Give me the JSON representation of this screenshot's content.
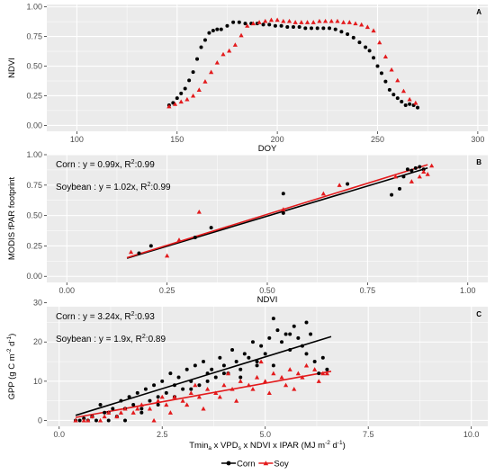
{
  "colors": {
    "corn": "#000000",
    "soy": "#e31a1c",
    "panel_bg": "#ebebeb",
    "grid": "#ffffff",
    "axis_text": "#4d4d4d"
  },
  "legend": {
    "placement": "bottom-center",
    "items": [
      {
        "label": "Corn",
        "marker": "circle",
        "color": "#000000"
      },
      {
        "label": "Soy",
        "marker": "triangle",
        "color": "#e31a1c"
      }
    ]
  },
  "chart_data": [
    {
      "panel": "A",
      "type": "scatter",
      "xlabel": "DOY",
      "ylabel": "NDVI",
      "xlim": [
        85,
        305
      ],
      "ylim": [
        -0.05,
        1.02
      ],
      "xticks": [
        "100",
        "150",
        "200",
        "250",
        "300"
      ],
      "xtick_values": [
        100,
        150,
        200,
        250,
        300
      ],
      "yticks": [
        "0.00",
        "0.25",
        "0.50",
        "0.75",
        "1.00"
      ],
      "ytick_values": [
        0,
        0.25,
        0.5,
        0.75,
        1.0
      ],
      "grid": true,
      "series": [
        {
          "name": "Corn",
          "marker": "circle",
          "color": "#000000",
          "x": [
            146,
            148,
            150,
            152,
            154,
            156,
            158,
            160,
            162,
            164,
            166,
            168,
            170,
            172,
            175,
            178,
            181,
            184,
            187,
            190,
            193,
            196,
            199,
            202,
            205,
            208,
            211,
            214,
            217,
            220,
            223,
            226,
            229,
            232,
            235,
            238,
            241,
            244,
            246,
            248,
            250,
            252,
            254,
            256,
            258,
            260,
            262,
            264,
            266,
            268,
            270
          ],
          "y": [
            0.17,
            0.19,
            0.23,
            0.27,
            0.31,
            0.38,
            0.45,
            0.56,
            0.66,
            0.72,
            0.78,
            0.8,
            0.81,
            0.81,
            0.84,
            0.87,
            0.87,
            0.86,
            0.86,
            0.86,
            0.85,
            0.85,
            0.84,
            0.84,
            0.83,
            0.83,
            0.83,
            0.82,
            0.82,
            0.82,
            0.82,
            0.82,
            0.81,
            0.79,
            0.77,
            0.74,
            0.7,
            0.66,
            0.63,
            0.57,
            0.5,
            0.44,
            0.37,
            0.3,
            0.26,
            0.23,
            0.2,
            0.17,
            0.18,
            0.17,
            0.15
          ]
        },
        {
          "name": "Soy",
          "marker": "triangle",
          "color": "#e31a1c",
          "x": [
            146,
            149,
            152,
            155,
            158,
            161,
            164,
            167,
            170,
            173,
            176,
            179,
            182,
            185,
            188,
            191,
            194,
            197,
            200,
            203,
            206,
            209,
            212,
            215,
            218,
            221,
            224,
            227,
            230,
            233,
            236,
            239,
            242,
            245,
            248,
            251,
            254,
            257,
            260,
            263,
            266,
            269
          ],
          "y": [
            0.16,
            0.18,
            0.2,
            0.22,
            0.25,
            0.3,
            0.37,
            0.45,
            0.53,
            0.6,
            0.63,
            0.68,
            0.76,
            0.84,
            0.86,
            0.87,
            0.88,
            0.89,
            0.89,
            0.88,
            0.88,
            0.87,
            0.87,
            0.87,
            0.87,
            0.88,
            0.88,
            0.88,
            0.88,
            0.87,
            0.87,
            0.86,
            0.85,
            0.83,
            0.8,
            0.7,
            0.58,
            0.47,
            0.38,
            0.29,
            0.22,
            0.19
          ]
        }
      ]
    },
    {
      "panel": "B",
      "type": "scatter",
      "xlabel": "NDVI",
      "ylabel": "MODIS fPAR footprint",
      "xlim": [
        -0.05,
        1.05
      ],
      "ylim": [
        -0.05,
        1.0
      ],
      "xticks": [
        "0.00",
        "0.25",
        "0.50",
        "0.75",
        "1.00"
      ],
      "xtick_values": [
        0,
        0.25,
        0.5,
        0.75,
        1.0
      ],
      "yticks": [
        "0.00",
        "0.25",
        "0.50",
        "0.75",
        "1.00"
      ],
      "ytick_values": [
        0,
        0.25,
        0.5,
        0.75,
        1.0
      ],
      "grid": true,
      "annotations": [
        {
          "crop": "Corn",
          "text": "Corn : y = 0.99x,  R",
          "sup": "2",
          "tail": ":0.99"
        },
        {
          "crop": "Soybean",
          "text": "Soybean : y = 1.02x,  R",
          "sup": "2",
          "tail": ":0.99"
        }
      ],
      "fit_lines": [
        {
          "name": "Corn",
          "slope": 0.99,
          "x_range": [
            0.15,
            0.9
          ]
        },
        {
          "name": "Soybean",
          "slope": 1.02,
          "x_range": [
            0.15,
            0.9
          ]
        }
      ],
      "series": [
        {
          "name": "Corn",
          "marker": "circle",
          "color": "#000000",
          "x": [
            0.18,
            0.21,
            0.32,
            0.36,
            0.54,
            0.54,
            0.7,
            0.81,
            0.83,
            0.84,
            0.85,
            0.86,
            0.87,
            0.88,
            0.89
          ],
          "y": [
            0.19,
            0.25,
            0.32,
            0.4,
            0.52,
            0.68,
            0.76,
            0.67,
            0.72,
            0.82,
            0.88,
            0.87,
            0.89,
            0.9,
            0.88
          ]
        },
        {
          "name": "Soy",
          "marker": "triangle",
          "color": "#e31a1c",
          "x": [
            0.16,
            0.25,
            0.28,
            0.33,
            0.54,
            0.64,
            0.68,
            0.82,
            0.86,
            0.88,
            0.89,
            0.9,
            0.91
          ],
          "y": [
            0.2,
            0.17,
            0.3,
            0.53,
            0.55,
            0.68,
            0.75,
            0.82,
            0.78,
            0.82,
            0.86,
            0.84,
            0.91
          ]
        }
      ]
    },
    {
      "panel": "C",
      "type": "scatter",
      "xlabel": "Tmin",
      "ylabel": "GPP (g C m",
      "xlim": [
        -0.3,
        10.4
      ],
      "ylim": [
        -1.5,
        29
      ],
      "xticks": [
        "0.0",
        "2.5",
        "5.0",
        "7.5",
        "10.0"
      ],
      "xtick_values": [
        0,
        2.5,
        5,
        7.5,
        10
      ],
      "yticks": [
        "0",
        "10",
        "20",
        "30"
      ],
      "ytick_values": [
        0,
        10,
        20,
        30
      ],
      "grid": true,
      "annotations": [
        {
          "crop": "Corn",
          "text": "Corn : y = 3.24x,  R",
          "sup": "2",
          "tail": ":0.93"
        },
        {
          "crop": "Soybean",
          "text": "Soybean : y = 1.9x,  R",
          "sup": "2",
          "tail": ":0.89"
        }
      ],
      "fit_lines": [
        {
          "name": "Corn",
          "slope": 3.24,
          "x_range": [
            0.4,
            6.6
          ]
        },
        {
          "name": "Soybean",
          "slope": 1.9,
          "x_range": [
            0.4,
            6.6
          ]
        }
      ],
      "series": [
        {
          "name": "Corn",
          "marker": "circle",
          "color": "#000000",
          "x": [
            0.4,
            0.5,
            0.6,
            0.7,
            0.8,
            0.9,
            1.0,
            1.1,
            1.2,
            1.3,
            1.4,
            1.5,
            1.6,
            1.7,
            1.8,
            1.9,
            2.0,
            2.1,
            2.2,
            2.3,
            2.4,
            2.5,
            2.6,
            2.7,
            2.8,
            2.9,
            3.0,
            3.1,
            3.2,
            3.3,
            3.4,
            3.5,
            3.6,
            3.7,
            3.8,
            3.9,
            4.0,
            4.1,
            4.2,
            4.3,
            4.4,
            4.5,
            4.6,
            4.7,
            4.8,
            4.9,
            5.0,
            5.1,
            5.2,
            5.3,
            5.4,
            5.5,
            5.6,
            5.7,
            5.8,
            5.9,
            6.0,
            6.1,
            6.2,
            6.3,
            6.4,
            6.5,
            0.8,
            1.2,
            1.6,
            2.0,
            2.4,
            2.8,
            3.2,
            3.6,
            4.0,
            4.4,
            4.8,
            5.2,
            5.6,
            6.0
          ],
          "y": [
            0,
            0,
            0.5,
            0,
            1,
            0,
            4,
            2,
            0,
            3,
            1,
            5,
            3,
            6,
            4,
            7,
            2,
            8,
            5,
            9,
            6,
            10,
            7,
            12,
            9,
            11,
            8,
            13,
            10,
            14,
            9,
            15,
            12,
            13,
            11,
            16,
            14,
            12,
            18,
            15,
            13,
            17,
            16,
            20,
            15,
            19,
            17,
            21,
            14,
            23,
            20,
            22,
            18,
            24,
            21,
            19,
            17,
            22,
            15,
            12,
            16,
            13,
            1,
            2,
            0,
            3,
            4,
            6,
            8,
            10,
            12,
            11,
            14,
            26,
            22,
            25
          ]
        },
        {
          "name": "Soy",
          "marker": "triangle",
          "color": "#e31a1c",
          "x": [
            0.4,
            0.6,
            0.8,
            1.0,
            1.2,
            1.4,
            1.6,
            1.8,
            2.0,
            2.2,
            2.4,
            2.6,
            2.8,
            3.0,
            3.2,
            3.4,
            3.6,
            3.8,
            4.0,
            4.2,
            4.4,
            4.6,
            4.8,
            5.0,
            5.2,
            5.4,
            5.6,
            5.8,
            6.0,
            6.2,
            6.4,
            0.7,
            1.1,
            1.5,
            1.9,
            2.3,
            2.7,
            3.1,
            3.5,
            3.9,
            4.3,
            4.7,
            5.1,
            5.5,
            5.9,
            6.3,
            2.5,
            3.3,
            4.1,
            4.9,
            5.7,
            6.5
          ],
          "y": [
            0,
            0,
            1,
            0,
            2,
            1,
            3,
            2,
            4,
            3,
            5,
            4,
            6,
            5,
            7,
            6,
            8,
            7,
            9,
            8,
            10,
            9,
            11,
            10,
            12,
            11,
            13,
            12,
            14,
            13,
            12,
            0,
            1,
            2,
            3,
            0,
            2,
            4,
            3,
            6,
            5,
            8,
            7,
            9,
            11,
            10,
            6,
            9,
            12,
            15,
            8,
            12
          ]
        }
      ]
    }
  ]
}
